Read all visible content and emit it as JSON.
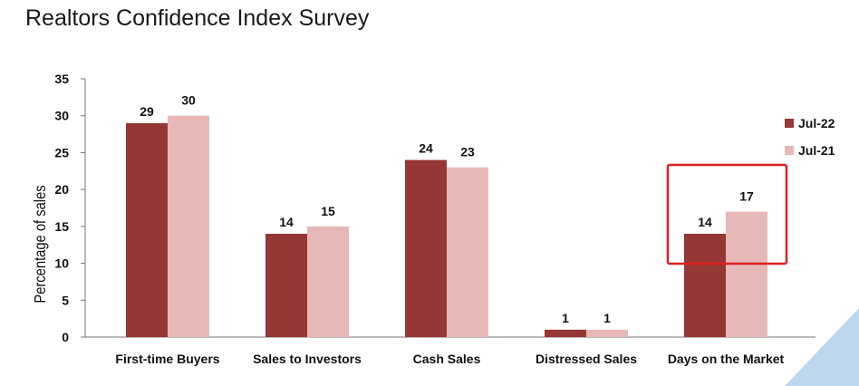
{
  "title": "Realtors Confidence Index Survey",
  "chart_data": {
    "type": "bar",
    "title": "Realtors Confidence Index Survey",
    "xlabel": "",
    "ylabel": "Percentage of sales",
    "ylim": [
      0,
      35
    ],
    "yticks": [
      0,
      5,
      10,
      15,
      20,
      25,
      30,
      35
    ],
    "categories": [
      "First-time Buyers",
      "Sales to Investors",
      "Cash Sales",
      "Distressed Sales",
      "Days on the Market"
    ],
    "series": [
      {
        "name": "Jul-22",
        "values": [
          29,
          14,
          24,
          1,
          14
        ],
        "color": "#953735"
      },
      {
        "name": "Jul-21",
        "values": [
          30,
          15,
          23,
          1,
          17
        ],
        "color": "#e6b9b8"
      }
    ],
    "grid": false,
    "legend": "right",
    "highlight": {
      "category": "Days on the Market",
      "color": "#e02020"
    },
    "corner_accent_color": "#bdd7ee"
  }
}
